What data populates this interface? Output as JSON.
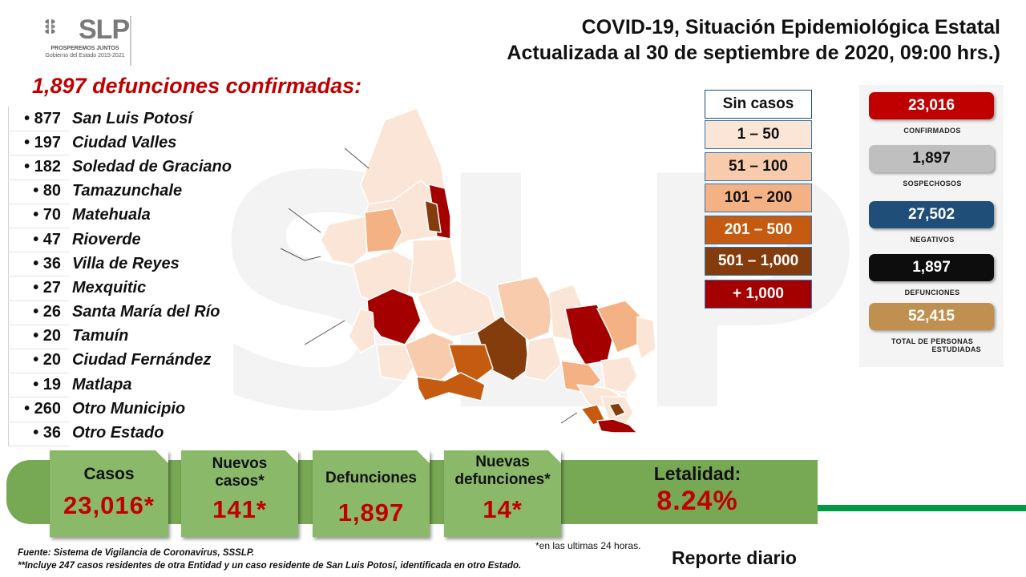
{
  "logo": {
    "word": "SLP",
    "slogan": "PROSPEREMOS JUNTOS",
    "subtitle": "Gobierno del Estado 2015-2021"
  },
  "header": {
    "title_line1": "COVID-19, Situación Epidemiológica Estatal",
    "title_line2": "Actualizada al 30 de septiembre de 2020, 09:00 hrs.)"
  },
  "deaths_heading": "1,897 defunciones confirmadas:",
  "municipalities": [
    {
      "count": "877",
      "name": "San Luis Potosí"
    },
    {
      "count": "197",
      "name": "Ciudad Valles"
    },
    {
      "count": "182",
      "name": "Soledad de Graciano"
    },
    {
      "count": "80",
      "name": "Tamazunchale"
    },
    {
      "count": "70",
      "name": "Matehuala"
    },
    {
      "count": "47",
      "name": "Rioverde"
    },
    {
      "count": "36",
      "name": "Villa de Reyes"
    },
    {
      "count": "27",
      "name": "Mexquitic"
    },
    {
      "count": "26",
      "name": "Santa María del Río"
    },
    {
      "count": "20",
      "name": "Tamuín"
    },
    {
      "count": "20",
      "name": "Ciudad Fernández"
    },
    {
      "count": "19",
      "name": "Matlapa"
    },
    {
      "count": "260",
      "name": "Otro Municipio"
    },
    {
      "count": "36",
      "name": "Otro Estado"
    }
  ],
  "legend": [
    {
      "label": "Sin casos",
      "color": "#ffffff",
      "border": "#1f4e79",
      "text": "#111111"
    },
    {
      "label": "1 – 50",
      "color": "#fbe5d6",
      "border": "#2e75b6",
      "text": "#111111"
    },
    {
      "label": "51 – 100",
      "color": "#f8cbad",
      "border": "#2e75b6",
      "text": "#111111"
    },
    {
      "label": "101 – 200",
      "color": "#f4b183",
      "border": "#2e75b6",
      "text": "#111111"
    },
    {
      "label": "201 – 500",
      "color": "#c55a11",
      "border": "#2e75b6",
      "text": "#ffffff"
    },
    {
      "label": "501 – 1,000",
      "color": "#843c0c",
      "border": "#2e75b6",
      "text": "#ffffff"
    },
    {
      "label": "+ 1,000",
      "color": "#a50000",
      "border": "#2e75b6",
      "text": "#ffffff"
    }
  ],
  "stats": [
    {
      "value": "23,016",
      "label": "CONFIRMADOS",
      "color": "#c00000",
      "text": "#ffffff"
    },
    {
      "value": "1,897",
      "label": "SOSPECHOSOS",
      "color": "#bfbfbf",
      "text": "#111111"
    },
    {
      "value": "27,502",
      "label": "NEGATIVOS",
      "color": "#1f4e79",
      "text": "#ffffff"
    },
    {
      "value": "1,897",
      "label": "DEFUNCIONES",
      "color": "#0d0d0d",
      "text": "#ffffff"
    },
    {
      "value": "52,415",
      "label": "TOTAL DE PERSONAS",
      "label2": "ESTUDIADAS",
      "color": "#c09050",
      "text": "#ffffff"
    }
  ],
  "cards": {
    "cases": {
      "label": "Casos",
      "value": "23,016*"
    },
    "new_cases": {
      "label1": "Nuevos",
      "label2": "casos*",
      "value": "141*"
    },
    "deaths": {
      "label": "Defunciones",
      "value": "1,897"
    },
    "new_deaths": {
      "label1": "Nuevas",
      "label2": "defunciones*",
      "value": "14*"
    },
    "lethality": {
      "label": "Letalidad:",
      "value": "8.24%"
    }
  },
  "colors": {
    "band": "#77a853",
    "card": "#8ab96a",
    "accent_red": "#c00000",
    "stripe_green": "#009a44"
  },
  "footer": {
    "source": "Fuente: Sistema de Vigilancia de Coronavirus, SSSLP.",
    "note": "**Incluye 247 casos residentes de otra Entidad y un caso residente de San Luis Potosí, identificada en otro Estado.",
    "hours": "*en las ultimas 24 horas.",
    "report": "Reporte diario"
  }
}
